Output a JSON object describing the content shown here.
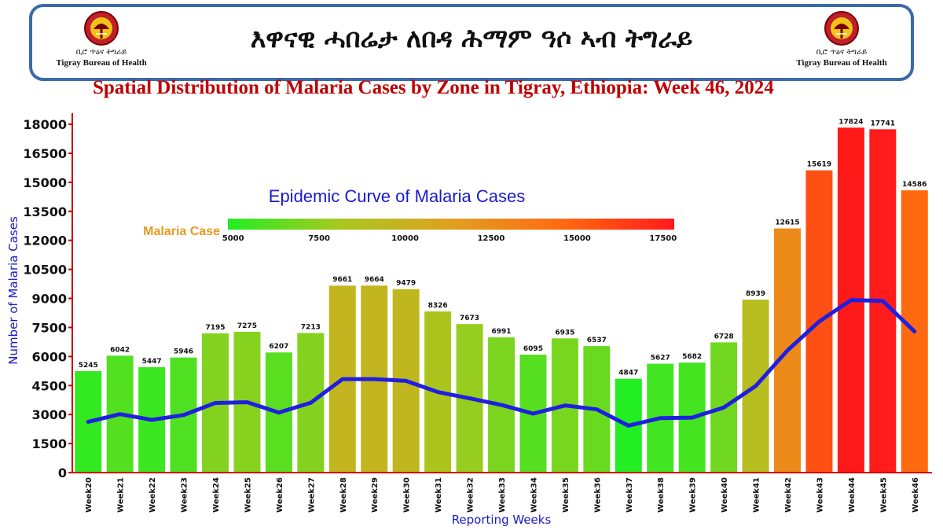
{
  "header": {
    "title": "እዋናዊ ሓበሬታ ለበዳ ሕማም ዓሶ ኣብ ትግራይ",
    "logo_amharic": "ቢሮ ጥዕና ትግራይ",
    "logo_english": "Tigray Bureau of Health"
  },
  "chart_data": {
    "type": "bar",
    "title": "Spatial Distribution of Malaria Cases by Zone in Tigray, Ethiopia: Week 46, 2024",
    "subtitle": "Epidemic Curve of Malaria Cases",
    "xlabel": "Reporting Weeks",
    "ylabel": "Number of Malaria Cases",
    "ylim": [
      0,
      18000
    ],
    "yticks": [
      0,
      1500,
      3000,
      4500,
      6000,
      7500,
      9000,
      10500,
      12000,
      13500,
      15000,
      16500,
      18000
    ],
    "categories": [
      "Week20",
      "Week21",
      "Week22",
      "Week23",
      "Week24",
      "Week25",
      "Week26",
      "Week27",
      "Week28",
      "Week29",
      "Week30",
      "Week31",
      "Week32",
      "Week33",
      "Week34",
      "Week35",
      "Week36",
      "Week37",
      "Week38",
      "Week39",
      "Week40",
      "Week41",
      "Week42",
      "Week43",
      "Week44",
      "Week45",
      "Week46"
    ],
    "series": [
      {
        "type": "bar",
        "values": [
          5245,
          6042,
          5447,
          5946,
          7195,
          7275,
          6207,
          7213,
          9661,
          9664,
          9479,
          8326,
          7673,
          6991,
          6095,
          6935,
          6537,
          4847,
          5627,
          5682,
          6728,
          8939,
          12615,
          15619,
          17824,
          17741,
          14586
        ]
      },
      {
        "type": "line",
        "color": "#1f1fe0",
        "values": [
          2622,
          3021,
          2724,
          2973,
          3598,
          3638,
          3104,
          3607,
          4831,
          4832,
          4740,
          4163,
          3837,
          3496,
          3048,
          3468,
          3269,
          2424,
          2814,
          2841,
          3364,
          4470,
          6308,
          7810,
          8912,
          8871,
          7293
        ]
      }
    ],
    "colorbar": {
      "label": "Malaria Case",
      "ticks": [
        5000,
        7500,
        10000,
        12500,
        15000,
        17500
      ],
      "range": [
        4847,
        17824
      ],
      "colors": [
        "#22ee22",
        "#a8c81e",
        "#e0a020",
        "#ff6a10",
        "#ff1a1a"
      ]
    },
    "colors": {
      "title": "#c00000",
      "axis_label": "#1a1acc",
      "subtitle": "#1a1acc",
      "colorbar_label": "#e89a20",
      "axis_line": "#cc0000",
      "banner_border": "#3b6aa8"
    },
    "grid": false,
    "legend": "top-center"
  }
}
